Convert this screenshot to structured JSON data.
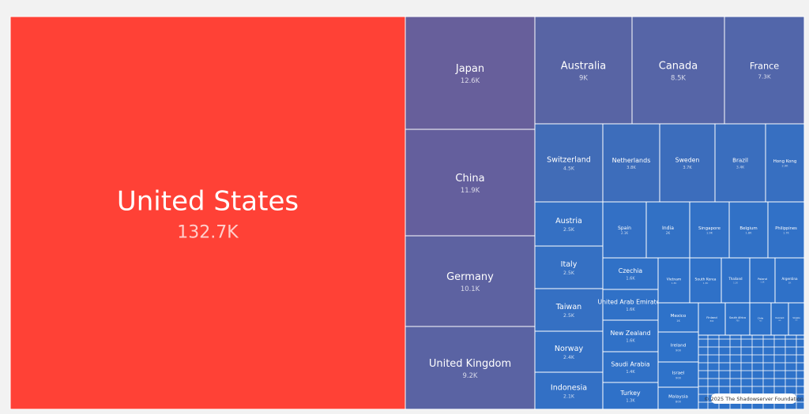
{
  "chart_data": {
    "type": "treemap",
    "credit": "© 2025 The Shadowserver Foundation",
    "items": [
      {
        "name": "United States",
        "value": 132700,
        "value_label": "132.7K",
        "color": "#ff4136"
      },
      {
        "name": "Japan",
        "value": 12600,
        "value_label": "12.6K",
        "color": "#675f9b"
      },
      {
        "name": "China",
        "value": 11900,
        "value_label": "11.9K",
        "color": "#645f9d"
      },
      {
        "name": "Germany",
        "value": 10100,
        "value_label": "10.1K",
        "color": "#5d62a1"
      },
      {
        "name": "United Kingdom",
        "value": 9200,
        "value_label": "9.2K",
        "color": "#5a63a3"
      },
      {
        "name": "Australia",
        "value": 9000,
        "value_label": "9K",
        "color": "#5864a4"
      },
      {
        "name": "Canada",
        "value": 8500,
        "value_label": "8.5K",
        "color": "#5665a7"
      },
      {
        "name": "France",
        "value": 7300,
        "value_label": "7.3K",
        "color": "#5266aa"
      },
      {
        "name": "Switzerland",
        "value": 4500,
        "value_label": "4.5K",
        "color": "#416cb7"
      },
      {
        "name": "Netherlands",
        "value": 3800,
        "value_label": "3.8K",
        "color": "#3d6dbb"
      },
      {
        "name": "Sweden",
        "value": 3700,
        "value_label": "3.7K",
        "color": "#3c6dbc"
      },
      {
        "name": "Brazil",
        "value": 3400,
        "value_label": "3.4K",
        "color": "#3a6ebe"
      },
      {
        "name": "Hong Kong",
        "value": 2900,
        "value_label": "2.9K",
        "color": "#376fc1"
      },
      {
        "name": "Austria",
        "value": 2500,
        "value_label": "2.5K",
        "color": "#3570c3"
      },
      {
        "name": "Italy",
        "value": 2500,
        "value_label": "2.5K",
        "color": "#3570c3"
      },
      {
        "name": "Taiwan",
        "value": 2500,
        "value_label": "2.5K",
        "color": "#3570c3"
      },
      {
        "name": "Norway",
        "value": 2400,
        "value_label": "2.4K",
        "color": "#3470c4"
      },
      {
        "name": "Indonesia",
        "value": 2100,
        "value_label": "2.1K",
        "color": "#3370c5"
      },
      {
        "name": "Spain",
        "value": 2100,
        "value_label": "2.1K",
        "color": "#3370c5"
      },
      {
        "name": "India",
        "value": 2000,
        "value_label": "2K",
        "color": "#3271c5"
      },
      {
        "name": "Singapore",
        "value": 1900,
        "value_label": "1.9K",
        "color": "#3271c6"
      },
      {
        "name": "Belgium",
        "value": 1800,
        "value_label": "1.8K",
        "color": "#3171c6"
      },
      {
        "name": "Philippines",
        "value": 1700,
        "value_label": "1.7K",
        "color": "#3171c7"
      },
      {
        "name": "Czechia",
        "value": 1600,
        "value_label": "1.6K",
        "color": "#3071c7"
      },
      {
        "name": "United Arab Emirates",
        "value": 1600,
        "value_label": "1.6K",
        "color": "#3071c7"
      },
      {
        "name": "New Zealand",
        "value": 1600,
        "value_label": "1.6K",
        "color": "#3071c7"
      },
      {
        "name": "Saudi Arabia",
        "value": 1400,
        "value_label": "1.4K",
        "color": "#3071c7"
      },
      {
        "name": "Turkey",
        "value": 1300,
        "value_label": "1.3K",
        "color": "#2f71c8"
      },
      {
        "name": "Vietnam",
        "value": 1300,
        "value_label": "1.3K",
        "color": "#2f71c8"
      },
      {
        "name": "South Korea",
        "value": 1300,
        "value_label": "1.3K",
        "color": "#2f71c8"
      },
      {
        "name": "Thailand",
        "value": 1100,
        "value_label": "1.1K",
        "color": "#2f71c8"
      },
      {
        "name": "Poland",
        "value": 1100,
        "value_label": "1.1K",
        "color": "#2f71c8"
      },
      {
        "name": "Argentina",
        "value": 1000,
        "value_label": "1K",
        "color": "#2f71c8"
      },
      {
        "name": "Mexico",
        "value": 1000,
        "value_label": "1K",
        "color": "#2e72c9"
      },
      {
        "name": "Ireland",
        "value": 900,
        "value_label": "900",
        "color": "#2e72c9"
      },
      {
        "name": "Israel",
        "value": 900,
        "value_label": "900",
        "color": "#2e72c9"
      },
      {
        "name": "Malaysia",
        "value": 800,
        "value_label": "800",
        "color": "#2e72c9"
      },
      {
        "name": "Finland",
        "value": 800,
        "value_label": "800",
        "color": "#2e72c9"
      },
      {
        "name": "South Africa",
        "value": 700,
        "value_label": "700",
        "color": "#2e72c9"
      },
      {
        "name": "Chile",
        "value": 700,
        "value_label": "700",
        "color": "#2e72c9"
      },
      {
        "name": "Denmark",
        "value": 600,
        "value_label": "600",
        "color": "#2e72c9"
      },
      {
        "name": "Slovakia",
        "value": 600,
        "value_label": "600",
        "color": "#2e72c9"
      }
    ]
  }
}
